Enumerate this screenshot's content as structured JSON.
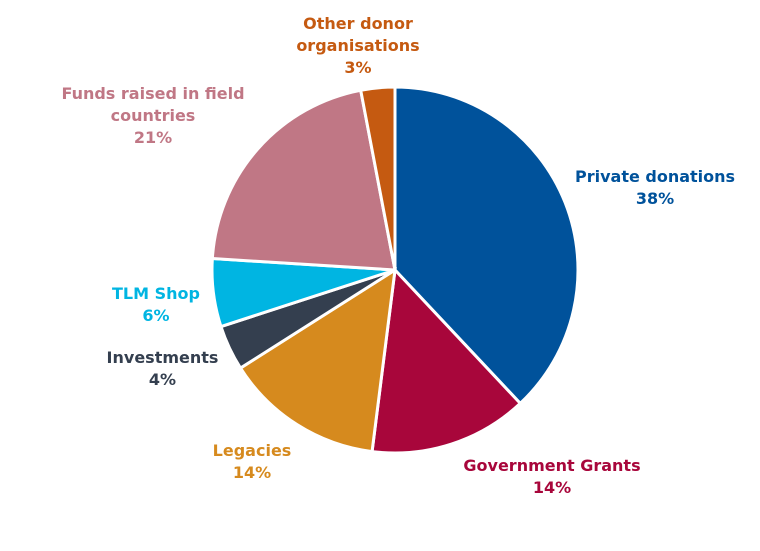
{
  "chart_data": {
    "type": "pie",
    "slices": [
      {
        "name": "Private donations",
        "value": 38,
        "pct_label": "38%",
        "color": "#00529b"
      },
      {
        "name": "Government Grants",
        "value": 14,
        "pct_label": "14%",
        "color": "#a8063b"
      },
      {
        "name": "Legacies",
        "value": 14,
        "pct_label": "14%",
        "color": "#d68a1e"
      },
      {
        "name": "Investments",
        "value": 4,
        "pct_label": "4%",
        "color": "#343f4f"
      },
      {
        "name": "TLM Shop",
        "value": 6,
        "pct_label": "6%",
        "color": "#00b5e2"
      },
      {
        "name": "Funds raised in field countries",
        "value": 21,
        "pct_label": "21%",
        "color": "#c07785"
      },
      {
        "name": "Other donor organisations",
        "value": 3,
        "pct_label": "3%",
        "color": "#c55a11"
      }
    ]
  },
  "labels": {
    "private": {
      "line1": "Private donations",
      "pct": "38%"
    },
    "government": {
      "line1": "Government Grants",
      "pct": "14%"
    },
    "legacies": {
      "line1": "Legacies",
      "pct": "14%"
    },
    "investments": {
      "line1": "Investments",
      "pct": "4%"
    },
    "shop": {
      "line1": "TLM Shop",
      "pct": "6%"
    },
    "field": {
      "line1": "Funds raised in field",
      "line2": "countries",
      "pct": "21%"
    },
    "other": {
      "line1": "Other donor",
      "line2": "organisations",
      "pct": "3%"
    }
  }
}
